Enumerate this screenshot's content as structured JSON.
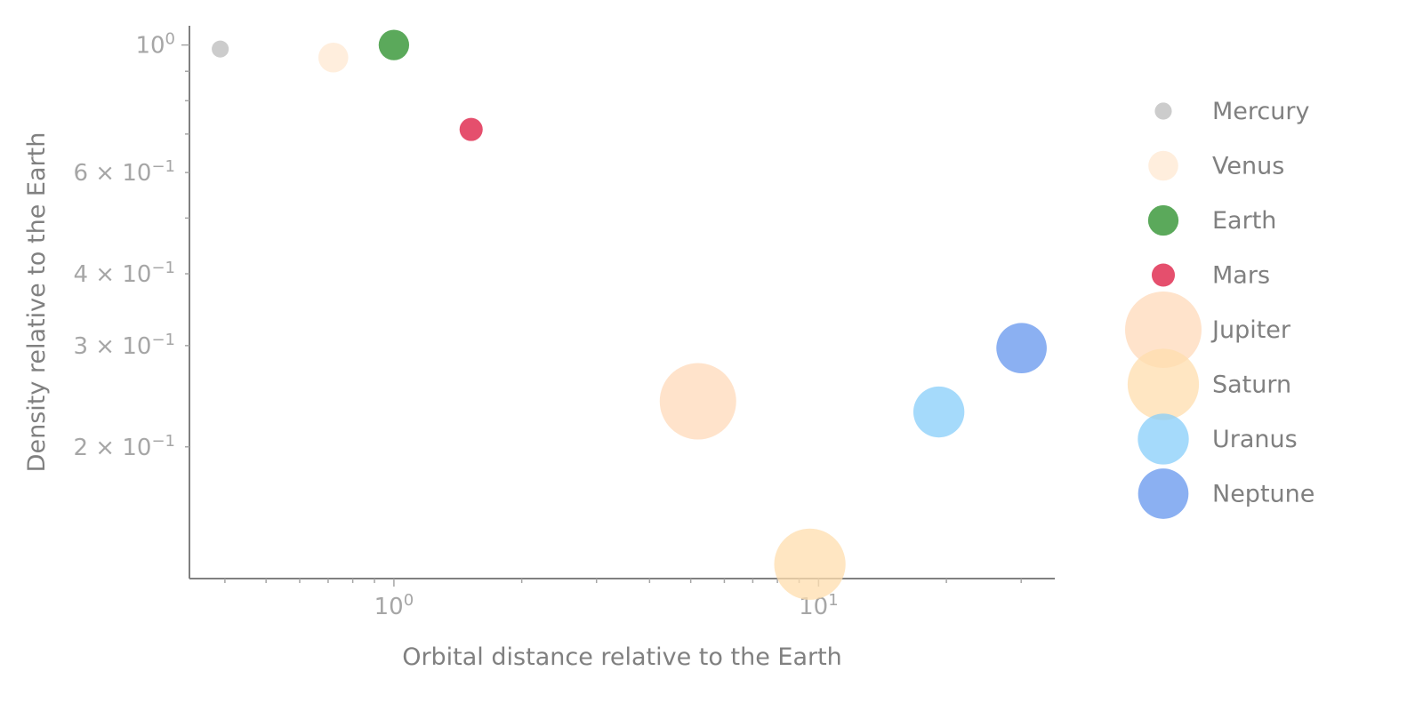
{
  "chart_data": {
    "type": "scatter",
    "title": "",
    "xlabel": "Orbital distance relative to the Earth",
    "ylabel": "Density relative to the Earth",
    "xscale": "log",
    "yscale": "log",
    "xlim": [
      0.33,
      36
    ],
    "ylim": [
      0.118,
      1.08
    ],
    "grid": false,
    "legend_placement": "right",
    "x_tick_labels": [
      {
        "value": 1,
        "base": "10",
        "exp": "0"
      },
      {
        "value": 10,
        "base": "10",
        "exp": "1"
      }
    ],
    "y_tick_labels": [
      {
        "value": 1.0,
        "base": "10",
        "exp": "0",
        "prefix": ""
      },
      {
        "value": 0.6,
        "base": "10",
        "exp": "−1",
        "prefix": "6 × "
      },
      {
        "value": 0.4,
        "base": "10",
        "exp": "−1",
        "prefix": "4 × "
      },
      {
        "value": 0.3,
        "base": "10",
        "exp": "−1",
        "prefix": "3 × "
      },
      {
        "value": 0.2,
        "base": "10",
        "exp": "−1",
        "prefix": "2 × "
      }
    ],
    "series": [
      {
        "name": "Mercury",
        "x": 0.39,
        "y": 0.984,
        "size": 0.383,
        "color": "#cccccc",
        "opacity": 1.0
      },
      {
        "name": "Venus",
        "x": 0.72,
        "y": 0.951,
        "size": 0.949,
        "color": "#ffeedd",
        "opacity": 1.0
      },
      {
        "name": "Earth",
        "x": 1.0,
        "y": 1.0,
        "size": 1.0,
        "color": "#3e9a3e",
        "opacity": 0.85
      },
      {
        "name": "Mars",
        "x": 1.52,
        "y": 0.713,
        "size": 0.532,
        "color": "#dc143c",
        "opacity": 0.75
      },
      {
        "name": "Jupiter",
        "x": 5.2,
        "y": 0.24,
        "size": 11.21,
        "color": "#ffdab9",
        "opacity": 0.75
      },
      {
        "name": "Saturn",
        "x": 9.54,
        "y": 0.125,
        "size": 9.45,
        "color": "#ffdead",
        "opacity": 0.75
      },
      {
        "name": "Uranus",
        "x": 19.2,
        "y": 0.23,
        "size": 4.01,
        "color": "#87cefa",
        "opacity": 0.75
      },
      {
        "name": "Neptune",
        "x": 30.06,
        "y": 0.297,
        "size": 3.88,
        "color": "#6495ed",
        "opacity": 0.75
      }
    ]
  }
}
